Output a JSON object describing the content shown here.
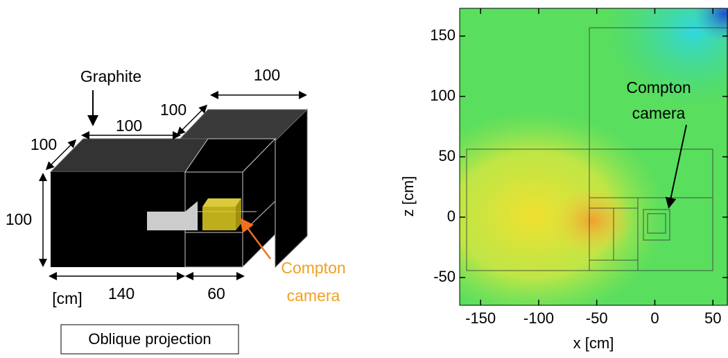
{
  "left_panel": {
    "material_label": "Graphite",
    "dimensions": [
      100,
      100,
      100,
      100,
      100,
      140,
      60
    ],
    "unit": "[cm]",
    "camera_label": [
      "Compton",
      "camera"
    ],
    "caption": "Oblique projection"
  },
  "right_panel": {
    "xlabel": "x [cm]",
    "ylabel": "z [cm]",
    "xlim": [
      -168,
      63
    ],
    "ylim": [
      -73,
      173
    ],
    "xticks": [
      -150,
      -100,
      -50,
      0,
      50
    ],
    "yticks": [
      -50,
      0,
      50,
      100,
      150
    ],
    "annotation": [
      "Compton",
      "camera"
    ]
  }
}
